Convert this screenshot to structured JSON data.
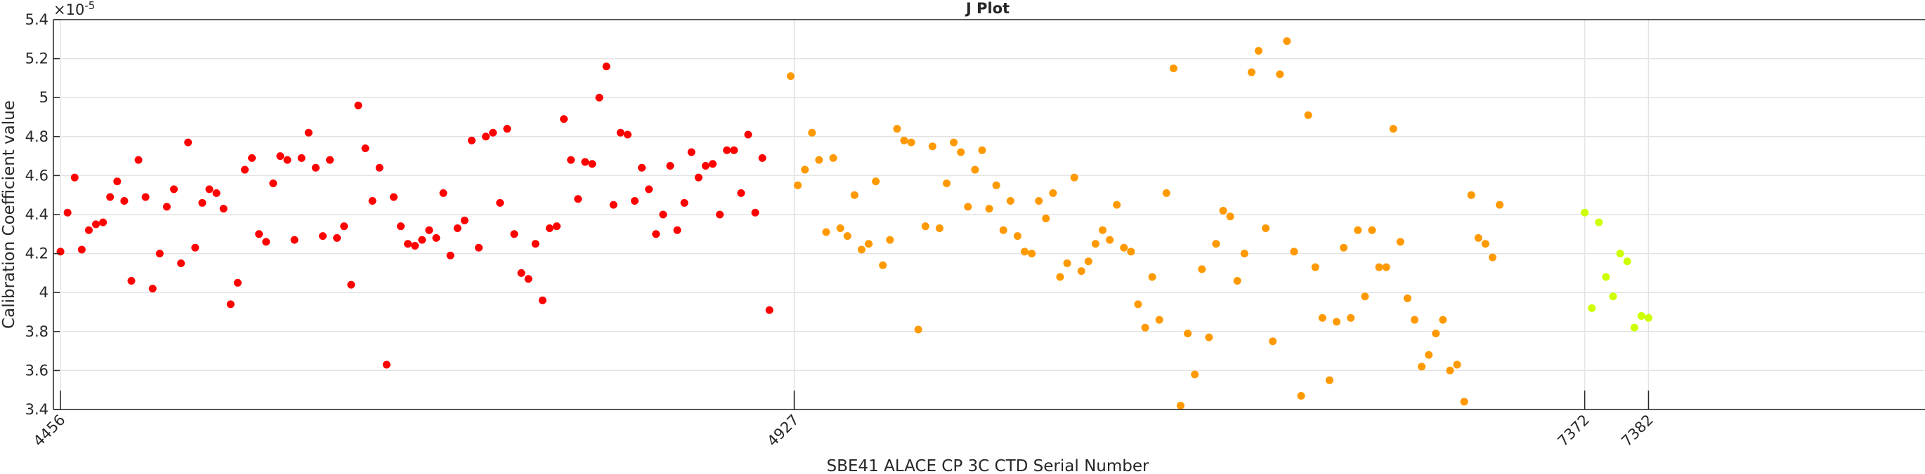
{
  "chart_data": {
    "type": "scatter",
    "title": "J Plot",
    "xlabel": "SBE41 ALACE CP 3C CTD Serial Number",
    "ylabel": "Calibration Coefficient value",
    "y_exponent_label": "×10",
    "y_exponent_power": "-5",
    "xlim": [
      0,
      264
    ],
    "ylim": [
      3.4,
      5.4
    ],
    "ytick_values": [
      3.4,
      3.6,
      3.8,
      4,
      4.2,
      4.4,
      4.6,
      4.8,
      5,
      5.2,
      5.4
    ],
    "ytick_labels": [
      "3.4",
      "3.6",
      "3.8",
      "4",
      "4.2",
      "4.4",
      "4.6",
      "4.8",
      "5",
      "5.2",
      "5.4"
    ],
    "xtick_values": [
      1,
      104.5,
      216,
      225
    ],
    "xtick_labels": [
      "4456",
      "4927",
      "7372",
      "7382"
    ],
    "series": [
      {
        "name": "4456",
        "color": "#ff0000",
        "x_start": 1,
        "values": [
          4.21,
          4.41,
          4.59,
          4.22,
          4.32,
          4.35,
          4.36,
          4.49,
          4.57,
          4.47,
          4.06,
          4.68,
          4.49,
          4.02,
          4.2,
          4.44,
          4.53,
          4.15,
          4.77,
          4.23,
          4.46,
          4.53,
          4.51,
          4.43,
          3.94,
          4.05,
          4.63,
          4.69,
          4.3,
          4.26,
          4.56,
          4.7,
          4.68,
          4.27,
          4.69,
          4.82,
          4.64,
          4.29,
          4.68,
          4.28,
          4.34,
          4.04,
          4.96,
          4.74,
          4.47,
          4.64,
          3.63,
          4.49,
          4.34,
          4.25,
          4.24,
          4.27,
          4.32,
          4.28,
          4.51,
          4.19,
          4.33,
          4.37,
          4.78,
          4.23,
          4.8,
          4.82,
          4.46,
          4.84,
          4.3,
          4.1,
          4.07,
          4.25,
          3.96,
          4.33,
          4.34,
          4.89,
          4.68,
          4.48,
          4.67,
          4.66,
          5.0,
          5.16,
          4.45,
          4.82,
          4.81,
          4.47,
          4.64,
          4.53,
          4.3,
          4.4,
          4.65,
          4.32,
          4.46,
          4.72,
          4.59,
          4.65,
          4.66,
          4.4,
          4.73,
          4.73,
          4.51,
          4.81,
          4.41,
          4.69,
          3.91
        ]
      },
      {
        "name": "4927",
        "color": "#ff9900",
        "x_start": 104,
        "values": [
          5.11,
          4.55,
          4.63,
          4.82,
          4.68,
          4.31,
          4.69,
          4.33,
          4.29,
          4.5,
          4.22,
          4.25,
          4.57,
          4.14,
          4.27,
          4.84,
          4.78,
          4.77,
          3.81,
          4.34,
          4.75,
          4.33,
          4.56,
          4.77,
          4.72,
          4.44,
          4.63,
          4.73,
          4.43,
          4.55,
          4.32,
          4.47,
          4.29,
          4.21,
          4.2,
          4.47,
          4.38,
          4.51,
          4.08,
          4.15,
          4.59,
          4.11,
          4.16,
          4.25,
          4.32,
          4.27,
          4.45,
          4.23,
          4.21,
          3.94,
          3.82,
          4.08,
          3.86,
          4.51,
          5.15,
          3.42,
          3.79,
          3.58,
          4.12,
          3.77,
          4.25,
          4.42,
          4.39,
          4.06,
          4.2,
          5.13,
          5.24,
          4.33,
          3.75,
          5.12,
          5.29,
          4.21,
          3.47,
          4.91,
          4.13,
          3.87,
          3.55,
          3.85,
          4.23,
          3.87,
          4.32,
          3.98,
          4.32,
          4.13,
          4.13,
          4.84,
          4.26,
          3.97,
          3.86,
          3.62,
          3.68,
          3.79,
          3.86,
          3.6,
          3.63,
          3.44,
          4.5,
          4.28,
          4.25,
          4.18,
          4.45
        ]
      },
      {
        "name": "7372",
        "color": "#ccff00",
        "x_start": 216,
        "values": [
          4.41,
          3.92,
          4.36,
          4.08,
          3.98,
          4.2,
          4.16,
          3.82,
          3.88,
          3.87
        ]
      }
    ]
  }
}
